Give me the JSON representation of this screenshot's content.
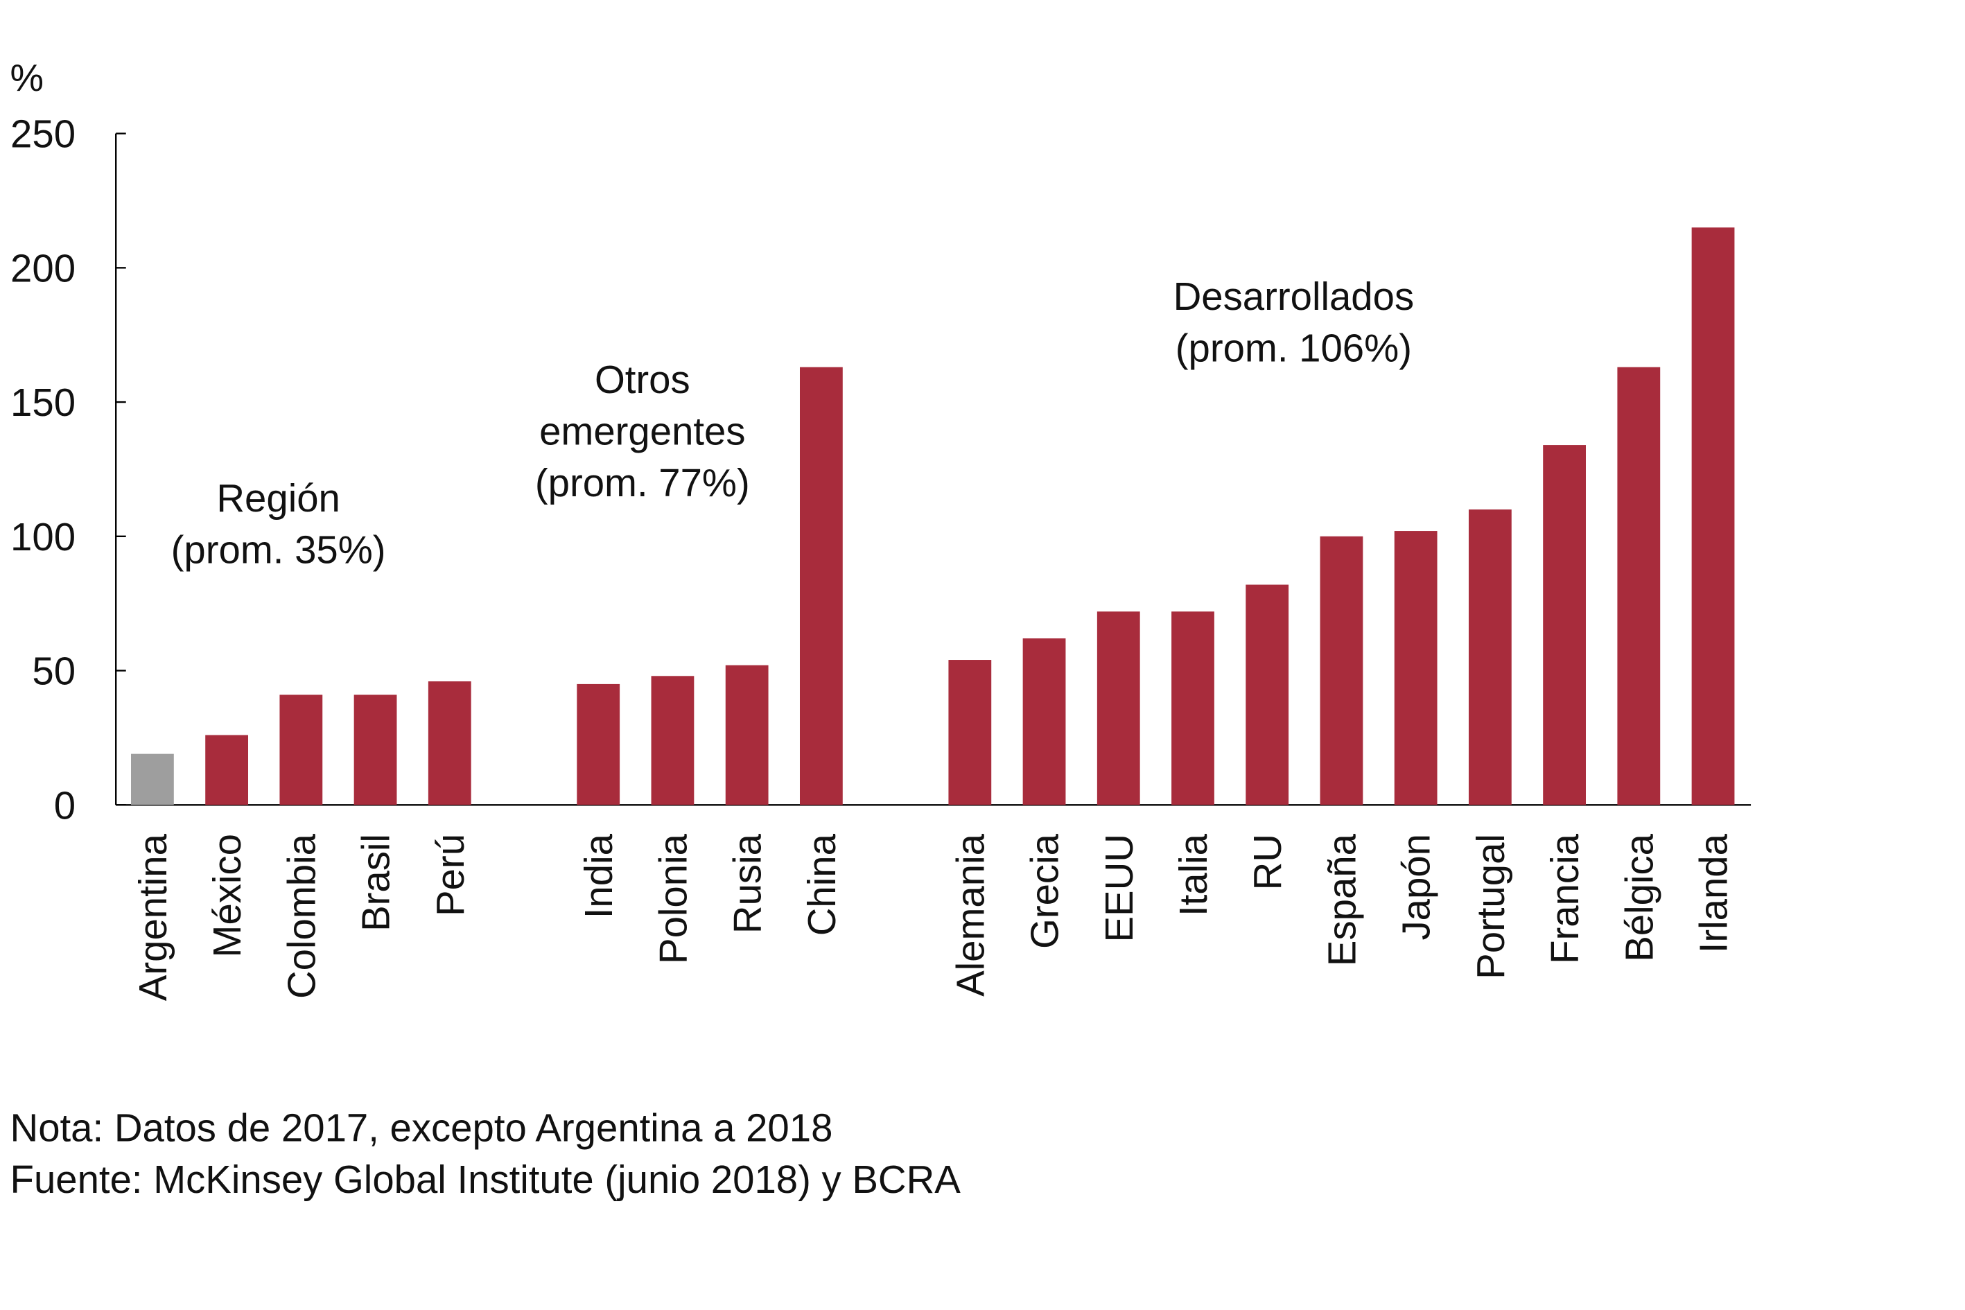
{
  "chart_data": {
    "type": "bar",
    "ylabel": "%",
    "ylim": [
      0,
      250
    ],
    "yticks": [
      0,
      50,
      100,
      150,
      200,
      250
    ],
    "grid": false,
    "categories": [
      "Argentina",
      "México",
      "Colombia",
      "Brasil",
      "Perú",
      "India",
      "Polonia",
      "Rusia",
      "China",
      "Alemania",
      "Grecia",
      "EEUU",
      "Italia",
      "RU",
      "España",
      "Japón",
      "Portugal",
      "Francia",
      "Bélgica",
      "Irlanda"
    ],
    "values": [
      19,
      26,
      41,
      41,
      46,
      45,
      48,
      52,
      163,
      54,
      62,
      72,
      72,
      82,
      100,
      102,
      110,
      134,
      163,
      215
    ],
    "groups": [
      {
        "label_lines": [
          "Región",
          "(prom. 35%)"
        ],
        "members": [
          "Argentina",
          "México",
          "Colombia",
          "Brasil",
          "Perú"
        ]
      },
      {
        "label_lines": [
          "Otros",
          "emergentes",
          "(prom. 77%)"
        ],
        "members": [
          "India",
          "Polonia",
          "Rusia",
          "China"
        ]
      },
      {
        "label_lines": [
          "Desarrollados",
          "(prom. 106%)"
        ],
        "members": [
          "Alemania",
          "Grecia",
          "EEUU",
          "Italia",
          "RU",
          "España",
          "Japón",
          "Portugal",
          "Francia",
          "Bélgica",
          "Irlanda"
        ]
      }
    ],
    "colors": {
      "highlight": "#9e9e9e",
      "default": "#a82c3c"
    },
    "highlight_category": "Argentina"
  },
  "notes": {
    "nota": "Nota: Datos de 2017, excepto Argentina a 2018",
    "fuente": "Fuente: McKinsey Global Institute (junio 2018) y BCRA"
  }
}
